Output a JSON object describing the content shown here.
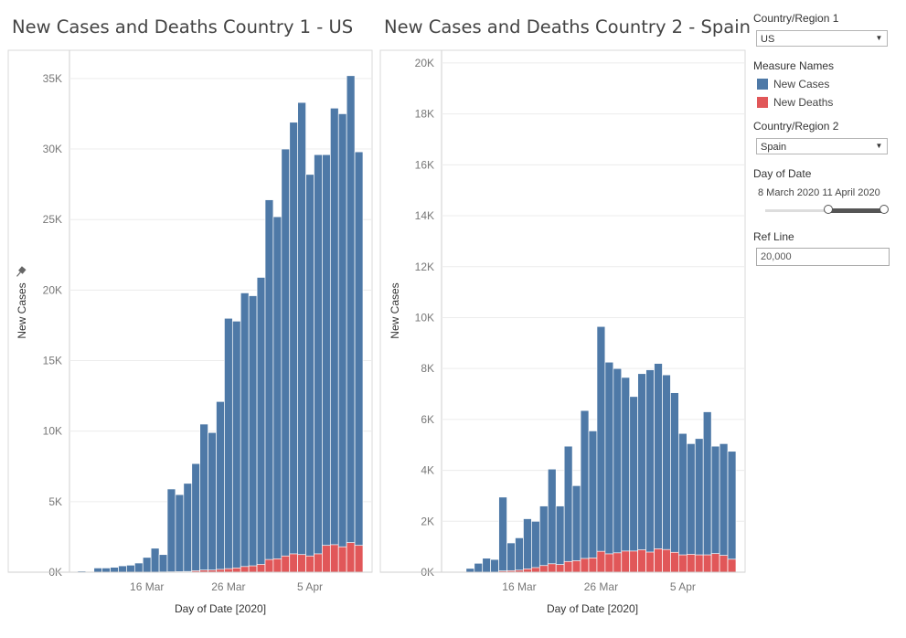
{
  "charts_meta": [
    {
      "title": "New Cases and Deaths Country 1 - US"
    },
    {
      "title": "New Cases and Deaths Country 2 - Spain"
    }
  ],
  "controls": {
    "country1_label": "Country/Region 1",
    "country1_value": "US",
    "measure_label": "Measure Names",
    "measures": [
      {
        "label": "New Cases",
        "color": "#4e79a7"
      },
      {
        "label": "New Deaths",
        "color": "#e15759"
      }
    ],
    "country2_label": "Country/Region 2",
    "country2_value": "Spain",
    "date_label": "Day of Date",
    "date_start": "8 March 2020",
    "date_end": "11 April 2020",
    "refline_label": "Ref Line",
    "refline_value": "20,000"
  },
  "chart_data": [
    {
      "type": "bar",
      "stacked": true,
      "title": "New Cases and Deaths Country 1 - US",
      "xlabel": "Day of Date [2020]",
      "ylabel": "New Cases",
      "ylim": [
        0,
        37000
      ],
      "yticks": [
        0,
        5000,
        10000,
        15000,
        20000,
        25000,
        30000,
        35000
      ],
      "ytick_labels": [
        "0K",
        "5K",
        "10K",
        "15K",
        "20K",
        "25K",
        "30K",
        "35K"
      ],
      "xtick_labels": [
        {
          "label": "16 Mar",
          "date": "2020-03-16"
        },
        {
          "label": "26 Mar",
          "date": "2020-03-26"
        },
        {
          "label": "5 Apr",
          "date": "2020-04-05"
        }
      ],
      "dates": [
        "2020-03-07",
        "2020-03-08",
        "2020-03-09",
        "2020-03-10",
        "2020-03-11",
        "2020-03-12",
        "2020-03-13",
        "2020-03-14",
        "2020-03-15",
        "2020-03-16",
        "2020-03-17",
        "2020-03-18",
        "2020-03-19",
        "2020-03-20",
        "2020-03-21",
        "2020-03-22",
        "2020-03-23",
        "2020-03-24",
        "2020-03-25",
        "2020-03-26",
        "2020-03-27",
        "2020-03-28",
        "2020-03-29",
        "2020-03-30",
        "2020-03-31",
        "2020-04-01",
        "2020-04-02",
        "2020-04-03",
        "2020-04-04",
        "2020-04-05",
        "2020-04-06",
        "2020-04-07",
        "2020-04-08",
        "2020-04-09",
        "2020-04-10",
        "2020-04-11"
      ],
      "series": [
        {
          "name": "New Cases",
          "color": "#4e79a7",
          "values": [
            20,
            80,
            40,
            300,
            300,
            350,
            450,
            500,
            650,
            1050,
            1700,
            1250,
            5900,
            5500,
            6300,
            7700,
            10500,
            9900,
            12100,
            18000,
            17800,
            19800,
            19600,
            20900,
            26400,
            25200,
            30000,
            31900,
            33300,
            28200,
            29600,
            29600,
            32900,
            32500,
            35200,
            29800
          ]
        },
        {
          "name": "New Deaths",
          "color": "#e15759",
          "values": [
            0,
            0,
            0,
            0,
            0,
            0,
            0,
            0,
            0,
            0,
            10,
            20,
            30,
            40,
            50,
            100,
            150,
            150,
            200,
            250,
            300,
            400,
            450,
            550,
            900,
            950,
            1150,
            1300,
            1250,
            1150,
            1300,
            1900,
            1950,
            1800,
            2100,
            1900
          ]
        }
      ]
    },
    {
      "type": "bar",
      "stacked": true,
      "title": "New Cases and Deaths Country 2 - Spain",
      "xlabel": "Day of Date [2020]",
      "ylabel": "New Cases",
      "ylim": [
        0,
        20500
      ],
      "yticks": [
        0,
        2000,
        4000,
        6000,
        8000,
        10000,
        12000,
        14000,
        16000,
        18000,
        20000
      ],
      "ytick_labels": [
        "0K",
        "2K",
        "4K",
        "6K",
        "8K",
        "10K",
        "12K",
        "14K",
        "16K",
        "18K",
        "20K"
      ],
      "xtick_labels": [
        {
          "label": "16 Mar",
          "date": "2020-03-16"
        },
        {
          "label": "26 Mar",
          "date": "2020-03-26"
        },
        {
          "label": "5 Apr",
          "date": "2020-04-05"
        }
      ],
      "dates": [
        "2020-03-07",
        "2020-03-08",
        "2020-03-09",
        "2020-03-10",
        "2020-03-11",
        "2020-03-12",
        "2020-03-13",
        "2020-03-14",
        "2020-03-15",
        "2020-03-16",
        "2020-03-17",
        "2020-03-18",
        "2020-03-19",
        "2020-03-20",
        "2020-03-21",
        "2020-03-22",
        "2020-03-23",
        "2020-03-24",
        "2020-03-25",
        "2020-03-26",
        "2020-03-27",
        "2020-03-28",
        "2020-03-29",
        "2020-03-30",
        "2020-03-31",
        "2020-04-01",
        "2020-04-02",
        "2020-04-03",
        "2020-04-04",
        "2020-04-05",
        "2020-04-06",
        "2020-04-07",
        "2020-04-08",
        "2020-04-09",
        "2020-04-10",
        "2020-04-11"
      ],
      "series": [
        {
          "name": "New Cases",
          "color": "#4e79a7",
          "values": [
            0,
            0,
            0,
            150,
            350,
            550,
            500,
            2950,
            1150,
            1350,
            2100,
            2000,
            2600,
            4050,
            2600,
            4950,
            3400,
            6350,
            5550,
            9650,
            8250,
            8000,
            7650,
            6900,
            7800,
            7950,
            8200,
            7750,
            7050,
            5450,
            5050,
            5250,
            6300,
            4950,
            5050,
            4750
          ]
        },
        {
          "name": "New Deaths",
          "color": "#e15759",
          "values": [
            0,
            0,
            0,
            0,
            0,
            0,
            0,
            50,
            60,
            80,
            130,
            180,
            260,
            330,
            300,
            420,
            450,
            540,
            560,
            820,
            720,
            760,
            830,
            830,
            880,
            790,
            920,
            890,
            780,
            680,
            700,
            680,
            680,
            730,
            660,
            510
          ]
        }
      ]
    }
  ]
}
